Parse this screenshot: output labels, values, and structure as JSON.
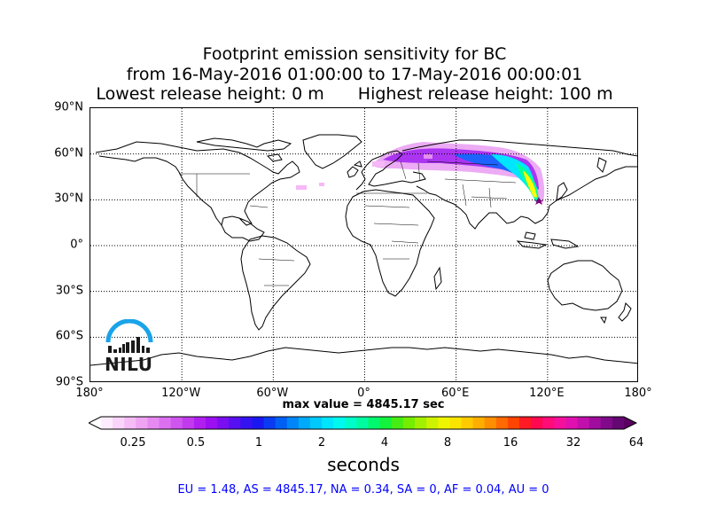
{
  "title": {
    "line1": "Footprint emission sensitivity for BC",
    "line2": "from 16-May-2016 01:00:00 to 17-May-2016 00:00:01",
    "line3_left": "Lowest release height: 0 m",
    "line3_right": "Highest release height: 100 m"
  },
  "map": {
    "projection": "equirectangular",
    "lat_labels": [
      "90°N",
      "60°N",
      "30°N",
      "0°",
      "30°S",
      "60°S",
      "90°S"
    ],
    "lon_labels": [
      "180°",
      "120°W",
      "60°W",
      "0°",
      "60°E",
      "120°E",
      "180°"
    ],
    "lat_values": [
      90,
      60,
      30,
      0,
      -30,
      -60,
      -90
    ],
    "lon_values": [
      -180,
      -120,
      -60,
      0,
      60,
      120,
      180
    ],
    "grid": "dotted",
    "coastline_color": "#000000",
    "plume_colors": [
      "#ffe6ff",
      "#f7b8f7",
      "#e58ff0",
      "#c44bf0",
      "#a020f0",
      "#7a1fe0",
      "#1e90ff",
      "#00e5ff",
      "#00ff9f",
      "#7cfc00",
      "#ffff00",
      "#ff1493",
      "#800080"
    ]
  },
  "max_value_text": "max value = 4845.17 sec",
  "colorbar": {
    "tick_labels": [
      "0.25",
      "0.5",
      "1",
      "2",
      "4",
      "8",
      "16",
      "32",
      "64"
    ],
    "units": "seconds",
    "colors": [
      "#fdecfd",
      "#fad4fa",
      "#f5bcf5",
      "#eea3f3",
      "#e68af1",
      "#dc70f0",
      "#cf55ef",
      "#c23aee",
      "#b11ff0",
      "#9b0ff1",
      "#7a0ef1",
      "#5710f1",
      "#3512f1",
      "#1a18f1",
      "#0a3af1",
      "#0060f4",
      "#0086f8",
      "#00aafb",
      "#00c9fd",
      "#00e5fe",
      "#00f9ee",
      "#00fdc9",
      "#00fca0",
      "#00f86f",
      "#13f23c",
      "#45ed15",
      "#75ed00",
      "#a3f000",
      "#cdf300",
      "#eff500",
      "#fbe500",
      "#ffcb00",
      "#ffae00",
      "#ff8e00",
      "#ff6a00",
      "#ff4400",
      "#ff1a24",
      "#ff0850",
      "#ff0c79",
      "#f5109b",
      "#e010ae",
      "#c20fab",
      "#a00d9e",
      "#800a8a",
      "#640773"
    ]
  },
  "regions_text": "EU = 1.48,  AS = 4845.17,  NA = 0.34,  SA = 0,  AF = 0.04,  AU = 0",
  "logo": {
    "text": "NILU",
    "color": "#1aa3e8"
  }
}
